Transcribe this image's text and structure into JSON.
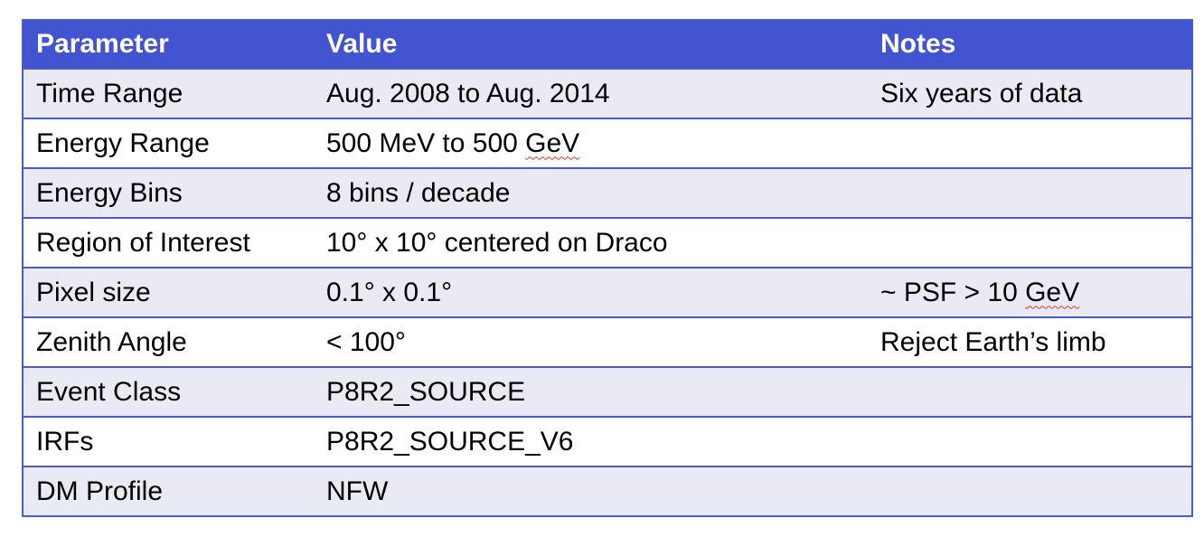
{
  "table": {
    "headers": [
      "Parameter",
      "Value",
      "Notes"
    ],
    "rows": [
      {
        "parameter": "Time Range",
        "value": "Aug. 2008 to Aug. 2014",
        "notes": "Six years of data"
      },
      {
        "parameter": "Energy Range",
        "value_pre": "500 MeV to 500 ",
        "value_flag": "GeV",
        "notes": ""
      },
      {
        "parameter": "Energy Bins",
        "value": "8 bins / decade",
        "notes": ""
      },
      {
        "parameter": "Region of Interest",
        "value": "10° x 10° centered on Draco",
        "notes": ""
      },
      {
        "parameter": "Pixel size",
        "value": "0.1° x 0.1°",
        "notes_pre": "~ PSF > 10 ",
        "notes_flag": "GeV"
      },
      {
        "parameter": "Zenith Angle",
        "value": "< 100°",
        "notes": "Reject Earth’s limb"
      },
      {
        "parameter": "Event Class",
        "value": "P8R2_SOURCE",
        "notes": ""
      },
      {
        "parameter": "IRFs",
        "value": "P8R2_SOURCE_V6",
        "notes": ""
      },
      {
        "parameter": "DM Profile",
        "value": "NFW",
        "notes": ""
      }
    ]
  },
  "colors": {
    "header_bg": "#4354d1",
    "odd_row_bg": "#e9eaf4",
    "even_row_bg": "#ffffff",
    "border": "#4a5cc9",
    "spellcheck_underline": "#e03030"
  }
}
